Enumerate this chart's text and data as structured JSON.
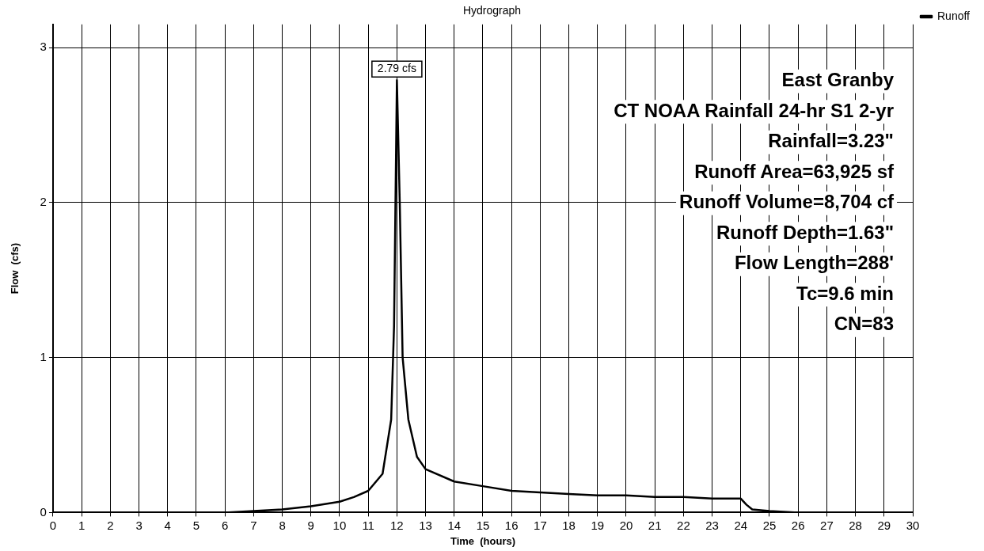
{
  "chart_data": {
    "type": "line",
    "title": "Hydrograph",
    "xlabel": "Time  (hours)",
    "ylabel": "Flow  (cfs)",
    "x": [
      0,
      1,
      2,
      3,
      4,
      5,
      6,
      7,
      8,
      9,
      10,
      10.5,
      11,
      11.5,
      11.8,
      11.9,
      12,
      12.1,
      12.2,
      12.4,
      12.7,
      13,
      14,
      15,
      16,
      17,
      18,
      19,
      20,
      21,
      22,
      23,
      24,
      24.2,
      24.4,
      25,
      26,
      27,
      28,
      29,
      30
    ],
    "series": [
      {
        "name": "Runoff",
        "color": "#000000",
        "values": [
          0,
          0,
          0,
          0,
          0,
          0,
          0,
          0.01,
          0.02,
          0.04,
          0.07,
          0.1,
          0.14,
          0.25,
          0.6,
          1.2,
          2.79,
          2.0,
          1.0,
          0.6,
          0.36,
          0.28,
          0.2,
          0.17,
          0.14,
          0.13,
          0.12,
          0.11,
          0.11,
          0.1,
          0.1,
          0.09,
          0.09,
          0.05,
          0.02,
          0.01,
          0,
          0,
          0,
          0,
          0
        ]
      }
    ],
    "xlim": [
      0,
      30
    ],
    "xticks": [
      0,
      1,
      2,
      3,
      4,
      5,
      6,
      7,
      8,
      9,
      10,
      11,
      12,
      13,
      14,
      15,
      16,
      17,
      18,
      19,
      20,
      21,
      22,
      23,
      24,
      25,
      26,
      27,
      28,
      29,
      30
    ],
    "ylim": [
      0,
      3.15
    ],
    "yticks": [
      0,
      1,
      2,
      3
    ],
    "grid": true,
    "legend": "top right",
    "marker": "none",
    "line_style": "solid",
    "annotations": [
      {
        "text": "2.79 cfs",
        "x": 12,
        "y": 2.79
      },
      "East Granby",
      "CT NOAA Rainfall 24-hr S1 2-yr",
      "Rainfall=3.23\"",
      "Runoff Area=63,925 sf",
      "Runoff Volume=8,704 cf",
      "Runoff Depth=1.63\"",
      "Flow Length=288'",
      "Tc=9.6 min",
      "CN=83"
    ]
  }
}
